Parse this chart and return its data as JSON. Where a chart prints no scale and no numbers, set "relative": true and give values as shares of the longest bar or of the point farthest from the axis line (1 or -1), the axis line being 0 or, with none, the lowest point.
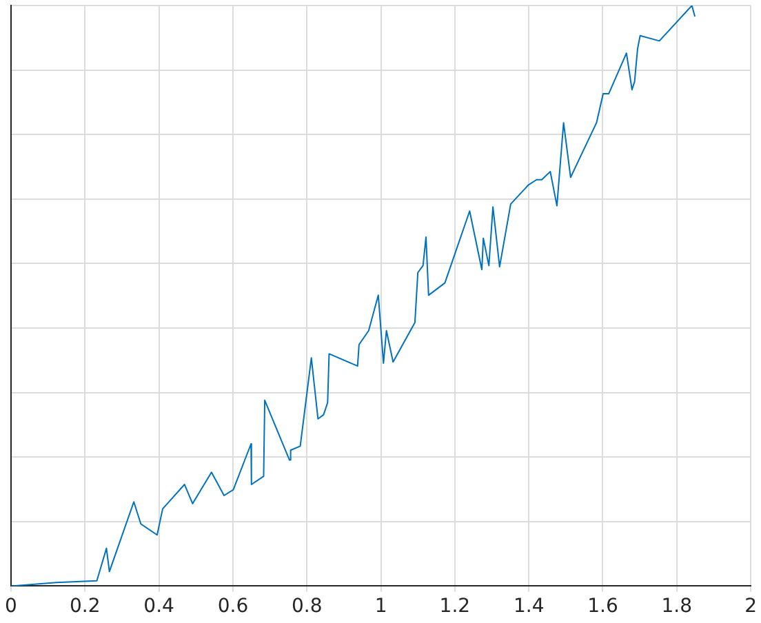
{
  "chart_data": {
    "type": "line",
    "relative": true,
    "x": [
      0,
      0.122,
      0.232,
      0.258,
      0.266,
      0.332,
      0.351,
      0.395,
      0.41,
      0.469,
      0.491,
      0.542,
      0.576,
      0.601,
      0.649,
      0.65,
      0.683,
      0.686,
      0.753,
      0.756,
      0.782,
      0.812,
      0.83,
      0.845,
      0.856,
      0.86,
      0.937,
      0.941,
      0.967,
      0.993,
      1.007,
      1.015,
      1.033,
      1.092,
      1.1,
      1.114,
      1.122,
      1.129,
      1.173,
      1.24,
      1.273,
      1.277,
      1.292,
      1.303,
      1.321,
      1.351,
      1.399,
      1.421,
      1.435,
      1.458,
      1.476,
      1.494,
      1.513,
      1.583,
      1.601,
      1.616,
      1.664,
      1.679,
      1.686,
      1.694,
      1.701,
      1.753,
      1.841,
      1.849
    ],
    "series": [
      {
        "color": "#0072bd",
        "values": [
          0,
          0.006,
          0.009,
          0.065,
          0.025,
          0.145,
          0.107,
          0.088,
          0.133,
          0.175,
          0.142,
          0.196,
          0.156,
          0.166,
          0.245,
          0.175,
          0.189,
          0.32,
          0.217,
          0.234,
          0.241,
          0.393,
          0.288,
          0.295,
          0.316,
          0.4,
          0.379,
          0.416,
          0.44,
          0.501,
          0.384,
          0.44,
          0.386,
          0.454,
          0.54,
          0.552,
          0.601,
          0.501,
          0.522,
          0.646,
          0.545,
          0.599,
          0.552,
          0.653,
          0.55,
          0.658,
          0.691,
          0.7,
          0.7,
          0.714,
          0.655,
          0.798,
          0.704,
          0.798,
          0.848,
          0.848,
          0.918,
          0.855,
          0.869,
          0.925,
          0.948,
          0.939,
          1,
          0.981
        ]
      }
    ],
    "xlim": [
      0,
      2
    ],
    "xticks": [
      0,
      0.2,
      0.4,
      0.6,
      0.8,
      1,
      1.2,
      1.4,
      1.6,
      1.8,
      2
    ],
    "grid": true,
    "tick_labels": "x",
    "marker": "none",
    "line_style": "solid"
  }
}
